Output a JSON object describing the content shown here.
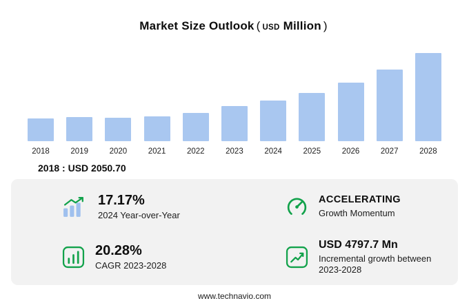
{
  "title": {
    "main": "Market Size Outlook",
    "paren_open": "(",
    "unit_small": "USD",
    "unit_bold": "Million",
    "paren_close": ")"
  },
  "chart_data": {
    "type": "bar",
    "title": "Market Size Outlook (USD Million)",
    "categories": [
      "2018",
      "2019",
      "2020",
      "2021",
      "2022",
      "2023",
      "2024",
      "2025",
      "2026",
      "2027",
      "2028"
    ],
    "values": [
      2050.7,
      2200,
      2100,
      2250,
      2550,
      3161.7,
      3704.6,
      4400,
      5300,
      6500,
      7959.4
    ],
    "ylim": [
      0,
      8300
    ],
    "grid": false,
    "legend": false,
    "bar_color": "#a9c7f0"
  },
  "annotation": {
    "text": "2018 : USD  2050.70"
  },
  "stats": [
    {
      "icon": "bar-chart-growth-icon",
      "value": "17.17%",
      "label": "2024 Year-over-Year"
    },
    {
      "icon": "speedometer-icon",
      "value": "ACCELERATING",
      "label": "Growth Momentum"
    },
    {
      "icon": "cagr-bars-icon",
      "value": "20.28%",
      "label": "CAGR 2023-2028"
    },
    {
      "icon": "incremental-growth-icon",
      "value": "USD 4797.7 Mn",
      "label": "Incremental growth between 2023-2028"
    }
  ],
  "footer": {
    "url": "www.technavio.com"
  },
  "colors": {
    "bar": "#a9c7f0",
    "green": "#12a24b",
    "panel": "#f2f2f2",
    "text": "#111111"
  }
}
